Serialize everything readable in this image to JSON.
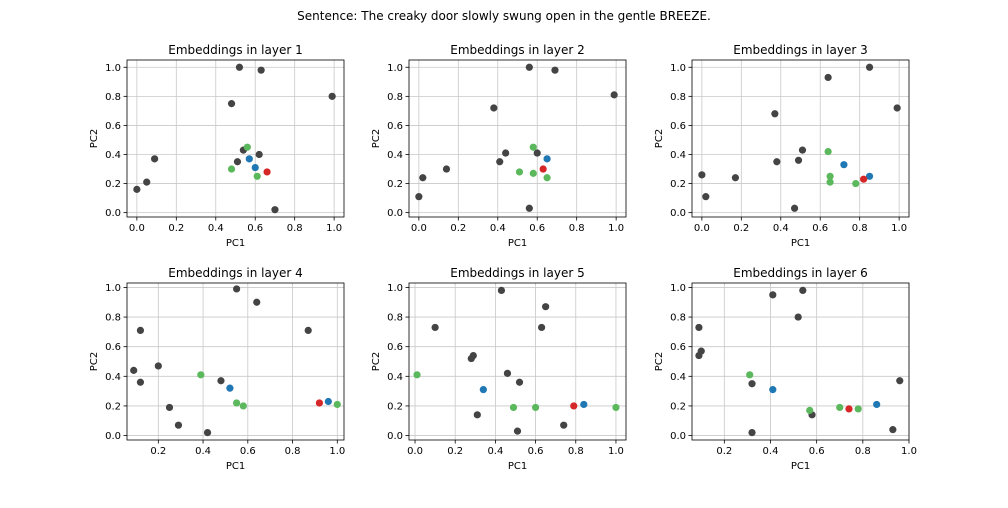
{
  "figure": {
    "suptitle": "Sentence: The creaky door slowly swung open in the gentle BREEZE."
  },
  "colors": {
    "gray": "#444444",
    "green": "#5cb85c",
    "blue": "#1f77b4",
    "red": "#d62728",
    "grid": "#c8c8c8",
    "axes": "#000000"
  },
  "chart_data": [
    {
      "type": "scatter",
      "title": "Embeddings in layer 1",
      "xlabel": "PC1",
      "ylabel": "PC2",
      "xlim": [
        -0.05,
        1.05
      ],
      "ylim": [
        -0.03,
        1.05
      ],
      "xticks": [
        0.0,
        0.2,
        0.4,
        0.6,
        0.8,
        1.0
      ],
      "xtick_labels": [
        "0.0",
        "0.2",
        "0.4",
        "0.6",
        "0.8",
        "1.0"
      ],
      "yticks": [
        0.0,
        0.2,
        0.4,
        0.6,
        0.8,
        1.0
      ],
      "ytick_labels": [
        "0.0",
        "0.2",
        "0.4",
        "0.6",
        "0.8",
        "1.0"
      ],
      "grid": true,
      "points": [
        {
          "x": 0.0,
          "y": 0.16,
          "color": "gray"
        },
        {
          "x": 0.05,
          "y": 0.21,
          "color": "gray"
        },
        {
          "x": 0.09,
          "y": 0.37,
          "color": "gray"
        },
        {
          "x": 0.48,
          "y": 0.75,
          "color": "gray"
        },
        {
          "x": 0.52,
          "y": 1.0,
          "color": "gray"
        },
        {
          "x": 0.63,
          "y": 0.98,
          "color": "gray"
        },
        {
          "x": 0.99,
          "y": 0.8,
          "color": "gray"
        },
        {
          "x": 0.51,
          "y": 0.35,
          "color": "gray"
        },
        {
          "x": 0.54,
          "y": 0.43,
          "color": "gray"
        },
        {
          "x": 0.62,
          "y": 0.4,
          "color": "gray"
        },
        {
          "x": 0.7,
          "y": 0.02,
          "color": "gray"
        },
        {
          "x": 0.48,
          "y": 0.3,
          "color": "green"
        },
        {
          "x": 0.56,
          "y": 0.45,
          "color": "green"
        },
        {
          "x": 0.61,
          "y": 0.25,
          "color": "green"
        },
        {
          "x": 0.57,
          "y": 0.37,
          "color": "blue"
        },
        {
          "x": 0.6,
          "y": 0.31,
          "color": "blue"
        },
        {
          "x": 0.66,
          "y": 0.28,
          "color": "red"
        }
      ]
    },
    {
      "type": "scatter",
      "title": "Embeddings in layer 2",
      "xlabel": "PC1",
      "ylabel": "PC2",
      "xlim": [
        -0.05,
        1.05
      ],
      "ylim": [
        -0.03,
        1.05
      ],
      "xticks": [
        0.0,
        0.2,
        0.4,
        0.6,
        0.8,
        1.0
      ],
      "xtick_labels": [
        "0.0",
        "0.2",
        "0.4",
        "0.6",
        "0.8",
        "1.0"
      ],
      "yticks": [
        0.0,
        0.2,
        0.4,
        0.6,
        0.8,
        1.0
      ],
      "ytick_labels": [
        "0.0",
        "0.2",
        "0.4",
        "0.6",
        "0.8",
        "1.0"
      ],
      "grid": true,
      "points": [
        {
          "x": 0.0,
          "y": 0.11,
          "color": "gray"
        },
        {
          "x": 0.02,
          "y": 0.24,
          "color": "gray"
        },
        {
          "x": 0.14,
          "y": 0.3,
          "color": "gray"
        },
        {
          "x": 0.38,
          "y": 0.72,
          "color": "gray"
        },
        {
          "x": 0.41,
          "y": 0.35,
          "color": "gray"
        },
        {
          "x": 0.44,
          "y": 0.41,
          "color": "gray"
        },
        {
          "x": 0.56,
          "y": 1.0,
          "color": "gray"
        },
        {
          "x": 0.56,
          "y": 0.03,
          "color": "gray"
        },
        {
          "x": 0.6,
          "y": 0.41,
          "color": "gray"
        },
        {
          "x": 0.69,
          "y": 0.98,
          "color": "gray"
        },
        {
          "x": 0.99,
          "y": 0.81,
          "color": "gray"
        },
        {
          "x": 0.51,
          "y": 0.28,
          "color": "green"
        },
        {
          "x": 0.58,
          "y": 0.45,
          "color": "green"
        },
        {
          "x": 0.58,
          "y": 0.27,
          "color": "green"
        },
        {
          "x": 0.65,
          "y": 0.24,
          "color": "green"
        },
        {
          "x": 0.65,
          "y": 0.37,
          "color": "blue"
        },
        {
          "x": 0.63,
          "y": 0.3,
          "color": "red"
        }
      ]
    },
    {
      "type": "scatter",
      "title": "Embeddings in layer 3",
      "xlabel": "PC1",
      "ylabel": "PC2",
      "xlim": [
        -0.05,
        1.05
      ],
      "ylim": [
        -0.03,
        1.05
      ],
      "xticks": [
        0.0,
        0.2,
        0.4,
        0.6,
        0.8,
        1.0
      ],
      "xtick_labels": [
        "0.0",
        "0.2",
        "0.4",
        "0.6",
        "0.8",
        "1.0"
      ],
      "yticks": [
        0.0,
        0.2,
        0.4,
        0.6,
        0.8,
        1.0
      ],
      "ytick_labels": [
        "0.0",
        "0.2",
        "0.4",
        "0.6",
        "0.8",
        "1.0"
      ],
      "grid": true,
      "points": [
        {
          "x": 0.0,
          "y": 0.26,
          "color": "gray"
        },
        {
          "x": 0.02,
          "y": 0.11,
          "color": "gray"
        },
        {
          "x": 0.17,
          "y": 0.24,
          "color": "gray"
        },
        {
          "x": 0.37,
          "y": 0.68,
          "color": "gray"
        },
        {
          "x": 0.38,
          "y": 0.35,
          "color": "gray"
        },
        {
          "x": 0.47,
          "y": 0.03,
          "color": "gray"
        },
        {
          "x": 0.49,
          "y": 0.36,
          "color": "gray"
        },
        {
          "x": 0.51,
          "y": 0.43,
          "color": "gray"
        },
        {
          "x": 0.64,
          "y": 0.93,
          "color": "gray"
        },
        {
          "x": 0.85,
          "y": 1.0,
          "color": "gray"
        },
        {
          "x": 0.99,
          "y": 0.72,
          "color": "gray"
        },
        {
          "x": 0.64,
          "y": 0.42,
          "color": "green"
        },
        {
          "x": 0.65,
          "y": 0.25,
          "color": "green"
        },
        {
          "x": 0.65,
          "y": 0.21,
          "color": "green"
        },
        {
          "x": 0.78,
          "y": 0.2,
          "color": "green"
        },
        {
          "x": 0.72,
          "y": 0.33,
          "color": "blue"
        },
        {
          "x": 0.85,
          "y": 0.25,
          "color": "blue"
        },
        {
          "x": 0.82,
          "y": 0.23,
          "color": "red"
        }
      ]
    },
    {
      "type": "scatter",
      "title": "Embeddings in layer 4",
      "xlabel": "PC1",
      "ylabel": "PC2",
      "xlim": [
        0.06,
        1.03
      ],
      "ylim": [
        -0.03,
        1.03
      ],
      "xticks": [
        0.2,
        0.4,
        0.6,
        0.8,
        1.0
      ],
      "xtick_labels": [
        "0.2",
        "0.4",
        "0.6",
        "0.8",
        "1.0"
      ],
      "yticks": [
        0.0,
        0.2,
        0.4,
        0.6,
        0.8,
        1.0
      ],
      "ytick_labels": [
        "0.0",
        "0.2",
        "0.4",
        "0.6",
        "0.8",
        "1.0"
      ],
      "grid": true,
      "points": [
        {
          "x": 0.09,
          "y": 0.44,
          "color": "gray"
        },
        {
          "x": 0.12,
          "y": 0.71,
          "color": "gray"
        },
        {
          "x": 0.12,
          "y": 0.36,
          "color": "gray"
        },
        {
          "x": 0.2,
          "y": 0.47,
          "color": "gray"
        },
        {
          "x": 0.25,
          "y": 0.19,
          "color": "gray"
        },
        {
          "x": 0.29,
          "y": 0.07,
          "color": "gray"
        },
        {
          "x": 0.42,
          "y": 0.02,
          "color": "gray"
        },
        {
          "x": 0.48,
          "y": 0.37,
          "color": "gray"
        },
        {
          "x": 0.55,
          "y": 0.99,
          "color": "gray"
        },
        {
          "x": 0.64,
          "y": 0.9,
          "color": "gray"
        },
        {
          "x": 0.87,
          "y": 0.71,
          "color": "gray"
        },
        {
          "x": 0.39,
          "y": 0.41,
          "color": "green"
        },
        {
          "x": 0.55,
          "y": 0.22,
          "color": "green"
        },
        {
          "x": 0.58,
          "y": 0.2,
          "color": "green"
        },
        {
          "x": 1.0,
          "y": 0.21,
          "color": "green"
        },
        {
          "x": 0.52,
          "y": 0.32,
          "color": "blue"
        },
        {
          "x": 0.96,
          "y": 0.23,
          "color": "blue"
        },
        {
          "x": 0.92,
          "y": 0.22,
          "color": "red"
        }
      ]
    },
    {
      "type": "scatter",
      "title": "Embeddings in layer 5",
      "xlabel": "PC1",
      "ylabel": "PC2",
      "xlim": [
        -0.03,
        1.05
      ],
      "ylim": [
        -0.03,
        1.03
      ],
      "xticks": [
        0.0,
        0.2,
        0.4,
        0.6,
        0.8,
        1.0
      ],
      "xtick_labels": [
        "0.0",
        "0.2",
        "0.4",
        "0.6",
        "0.8",
        "1.0"
      ],
      "yticks": [
        0.0,
        0.2,
        0.4,
        0.6,
        0.8,
        1.0
      ],
      "ytick_labels": [
        "0.0",
        "0.2",
        "0.4",
        "0.6",
        "0.8",
        "1.0"
      ],
      "grid": true,
      "points": [
        {
          "x": 0.1,
          "y": 0.73,
          "color": "gray"
        },
        {
          "x": 0.28,
          "y": 0.52,
          "color": "gray"
        },
        {
          "x": 0.29,
          "y": 0.54,
          "color": "gray"
        },
        {
          "x": 0.31,
          "y": 0.14,
          "color": "gray"
        },
        {
          "x": 0.43,
          "y": 0.98,
          "color": "gray"
        },
        {
          "x": 0.46,
          "y": 0.42,
          "color": "gray"
        },
        {
          "x": 0.52,
          "y": 0.36,
          "color": "gray"
        },
        {
          "x": 0.51,
          "y": 0.03,
          "color": "gray"
        },
        {
          "x": 0.63,
          "y": 0.73,
          "color": "gray"
        },
        {
          "x": 0.65,
          "y": 0.87,
          "color": "gray"
        },
        {
          "x": 0.74,
          "y": 0.07,
          "color": "gray"
        },
        {
          "x": 0.01,
          "y": 0.41,
          "color": "green"
        },
        {
          "x": 0.49,
          "y": 0.19,
          "color": "green"
        },
        {
          "x": 0.6,
          "y": 0.19,
          "color": "green"
        },
        {
          "x": 1.0,
          "y": 0.19,
          "color": "green"
        },
        {
          "x": 0.34,
          "y": 0.31,
          "color": "blue"
        },
        {
          "x": 0.84,
          "y": 0.21,
          "color": "blue"
        },
        {
          "x": 0.79,
          "y": 0.2,
          "color": "red"
        }
      ]
    },
    {
      "type": "scatter",
      "title": "Embeddings in layer 6",
      "xlabel": "PC1",
      "ylabel": "PC2",
      "xlim": [
        0.06,
        1.0
      ],
      "ylim": [
        -0.03,
        1.03
      ],
      "xticks": [
        0.2,
        0.4,
        0.6,
        0.8,
        1.0
      ],
      "xtick_labels": [
        "0.2",
        "0.4",
        "0.6",
        "0.8",
        "1.0"
      ],
      "yticks": [
        0.0,
        0.2,
        0.4,
        0.6,
        0.8,
        1.0
      ],
      "ytick_labels": [
        "0.0",
        "0.2",
        "0.4",
        "0.6",
        "0.8",
        "1.0"
      ],
      "grid": true,
      "points": [
        {
          "x": 0.09,
          "y": 0.73,
          "color": "gray"
        },
        {
          "x": 0.1,
          "y": 0.57,
          "color": "gray"
        },
        {
          "x": 0.09,
          "y": 0.54,
          "color": "gray"
        },
        {
          "x": 0.32,
          "y": 0.35,
          "color": "gray"
        },
        {
          "x": 0.32,
          "y": 0.02,
          "color": "gray"
        },
        {
          "x": 0.41,
          "y": 0.95,
          "color": "gray"
        },
        {
          "x": 0.52,
          "y": 0.8,
          "color": "gray"
        },
        {
          "x": 0.54,
          "y": 0.98,
          "color": "gray"
        },
        {
          "x": 0.58,
          "y": 0.14,
          "color": "gray"
        },
        {
          "x": 0.93,
          "y": 0.04,
          "color": "gray"
        },
        {
          "x": 0.96,
          "y": 0.37,
          "color": "gray"
        },
        {
          "x": 0.31,
          "y": 0.41,
          "color": "green"
        },
        {
          "x": 0.57,
          "y": 0.17,
          "color": "green"
        },
        {
          "x": 0.7,
          "y": 0.19,
          "color": "green"
        },
        {
          "x": 0.78,
          "y": 0.18,
          "color": "green"
        },
        {
          "x": 0.41,
          "y": 0.31,
          "color": "blue"
        },
        {
          "x": 0.86,
          "y": 0.21,
          "color": "blue"
        },
        {
          "x": 0.74,
          "y": 0.18,
          "color": "red"
        }
      ]
    }
  ]
}
